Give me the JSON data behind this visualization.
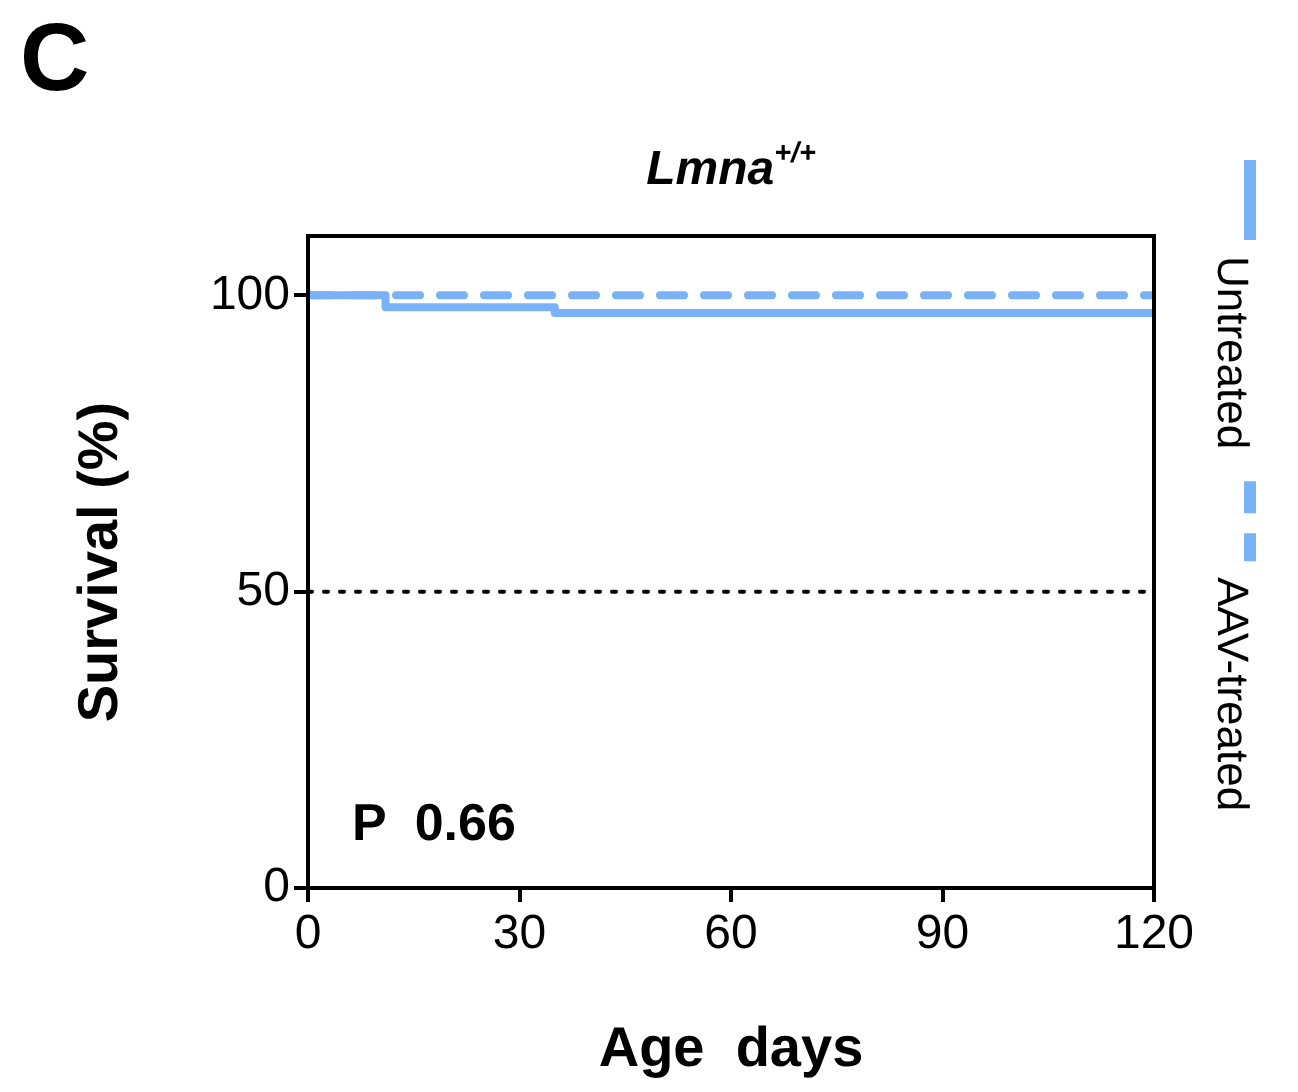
{
  "chart_data": {
    "type": "step",
    "title": "Lmna$^{+/+}$",
    "xlabel": "Age  days",
    "ylabel": "Survival (%)",
    "xlim": [
      0,
      120
    ],
    "xticks": [
      0,
      30,
      60,
      90,
      120
    ],
    "ylim": [
      0,
      110
    ],
    "yticks": [
      0,
      50,
      100
    ],
    "series": [
      {
        "name": "Untreated",
        "color": "#7ab2f7",
        "line_style": "solid",
        "x": [
          0,
          11,
          35,
          120
        ],
        "values": [
          100,
          98,
          97,
          97
        ]
      },
      {
        "name": "AAV-treated",
        "color": "#7ab2f7",
        "line_style": "dashed",
        "x": [
          0,
          120
        ],
        "values": [
          100,
          100
        ]
      }
    ],
    "ref_lines": [
      {
        "axis": "y",
        "value": 50,
        "color": "#000000",
        "line_style": "dotted"
      }
    ],
    "annotations": [
      "C",
      "P  0.66"
    ],
    "legend": "right",
    "grid": false,
    "marker": "none"
  }
}
